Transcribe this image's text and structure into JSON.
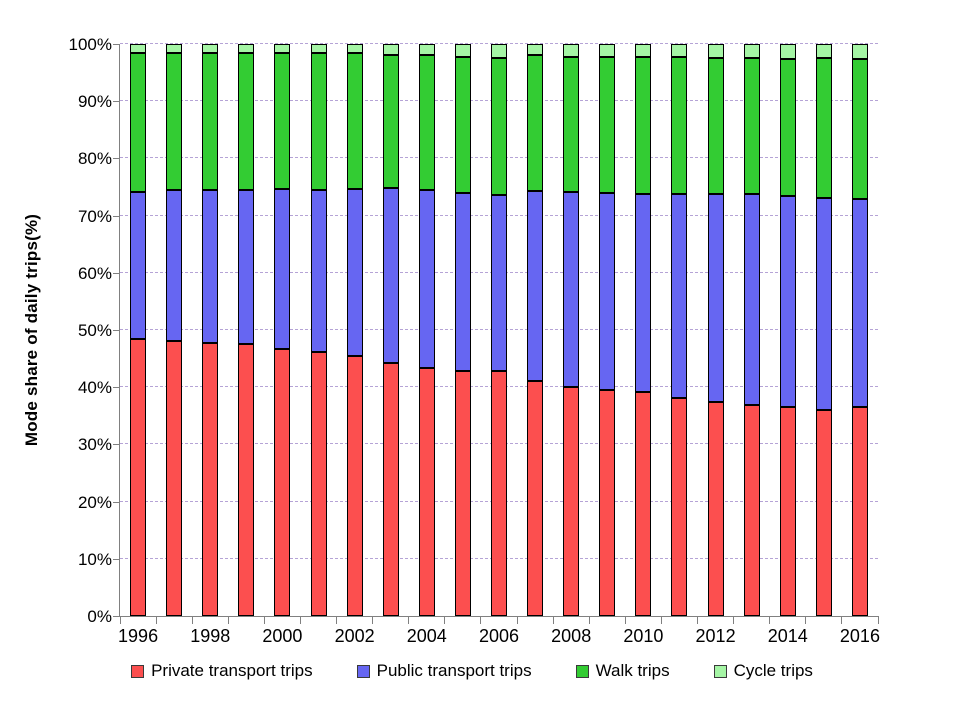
{
  "chart_data": {
    "type": "bar",
    "variant": "stacked-100-percent",
    "title": "",
    "ylabel": "Mode share of daily trips(%)",
    "xlabel": "",
    "ylim": [
      0,
      100
    ],
    "grid": "horizontal-dashed",
    "legend_position": "bottom",
    "y_tick_labels": [
      "0%",
      "10%",
      "20%",
      "30%",
      "40%",
      "50%",
      "60%",
      "70%",
      "80%",
      "90%",
      "100%"
    ],
    "y_tick_values": [
      0,
      10,
      20,
      30,
      40,
      50,
      60,
      70,
      80,
      90,
      100
    ],
    "categories": [
      1996,
      1997,
      1998,
      1999,
      2000,
      2001,
      2002,
      2003,
      2004,
      2005,
      2006,
      2007,
      2008,
      2009,
      2010,
      2011,
      2012,
      2013,
      2014,
      2015,
      2016
    ],
    "x_tick_labels": [
      "1996",
      "1998",
      "2000",
      "2002",
      "2004",
      "2006",
      "2008",
      "2010",
      "2012",
      "2014",
      "2016"
    ],
    "series": [
      {
        "name": "Private transport trips",
        "color": "#fc4f4f",
        "values": [
          48.5,
          48.0,
          47.7,
          47.6,
          46.6,
          46.1,
          45.4,
          44.3,
          43.3,
          42.9,
          42.8,
          41.0,
          40.1,
          39.6,
          39.1,
          38.1,
          37.5,
          36.9,
          36.5,
          36.0,
          36.5
        ]
      },
      {
        "name": "Public transport trips",
        "color": "#6666f2",
        "values": [
          25.7,
          26.4,
          26.7,
          26.9,
          28.0,
          28.4,
          29.2,
          30.5,
          31.2,
          31.1,
          30.8,
          33.3,
          34.0,
          34.3,
          34.6,
          35.6,
          36.3,
          36.9,
          36.9,
          37.1,
          36.4
        ]
      },
      {
        "name": "Walk trips",
        "color": "#33cc33",
        "values": [
          24.2,
          24.1,
          24.1,
          23.9,
          23.8,
          23.9,
          23.9,
          23.3,
          23.5,
          23.8,
          23.9,
          23.7,
          23.7,
          23.9,
          24.0,
          24.0,
          23.7,
          23.7,
          24.0,
          24.4,
          24.5
        ]
      },
      {
        "name": "Cycle trips",
        "color": "#a5f5a5",
        "values": [
          1.6,
          1.5,
          1.5,
          1.6,
          1.6,
          1.6,
          1.5,
          1.9,
          2.0,
          2.2,
          2.5,
          2.0,
          2.2,
          2.2,
          2.3,
          2.3,
          2.5,
          2.5,
          2.6,
          2.5,
          2.6
        ]
      }
    ],
    "colors": {
      "axis": "#808080",
      "gridline": "#b5a3d6",
      "bar_border": "#000000",
      "text": "#000000",
      "background": "#ffffff"
    }
  }
}
